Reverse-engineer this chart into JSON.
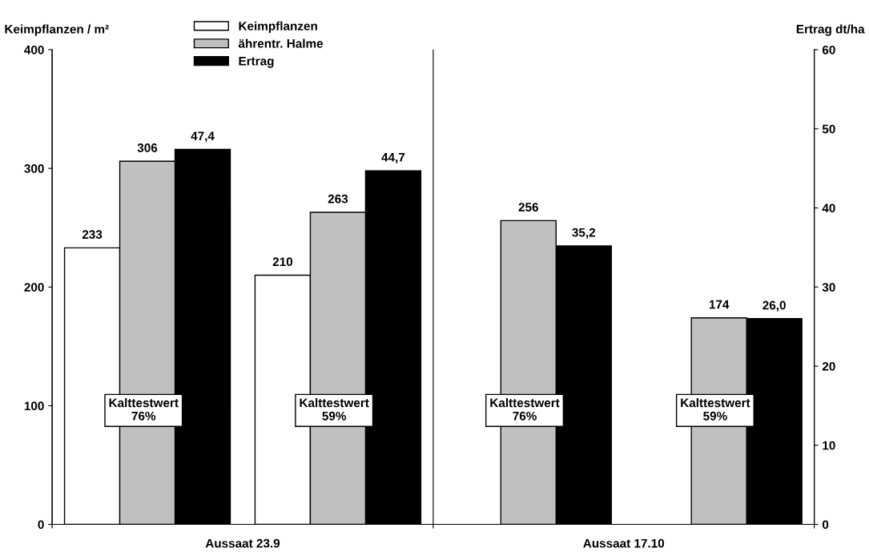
{
  "chart_data": {
    "type": "bar",
    "ylabel": "Keimpflanzen / m²",
    "y2label": "Ertrag dt/ha",
    "categories": [
      null,
      null,
      null,
      null
    ],
    "series": [
      {
        "name": "Keimpflanzen",
        "color": "#ffffff",
        "values": [
          233,
          210,
          null,
          null
        ],
        "value_labels": [
          "233",
          "210",
          null,
          null
        ]
      },
      {
        "name": "ährentr. Halme",
        "color": "#c0c0c0",
        "values": [
          306,
          263,
          256,
          174
        ],
        "value_labels": [
          "306",
          "263",
          "256",
          "174"
        ]
      },
      {
        "name": "Ertrag",
        "color": "#000000",
        "axis": "y2",
        "values": [
          47.4,
          44.7,
          35.2,
          26.0
        ],
        "value_labels": [
          "47,4",
          "44,7",
          "35,2",
          "26,0"
        ]
      }
    ],
    "ylim": [
      0,
      400
    ],
    "yticks": [
      0,
      100,
      200,
      300,
      400
    ],
    "y2lim": [
      0,
      60
    ],
    "y2ticks": [
      0,
      10,
      20,
      30,
      40,
      50,
      60
    ],
    "legend": "top left",
    "grid": false,
    "annotations": [
      "Kalttestwert\n76%",
      "Kalttestwert\n59%",
      "Kalttestwert\n76%",
      "Kalttestwert\n59%",
      "Aussaat 23.9",
      "Aussaat 17.10"
    ]
  }
}
